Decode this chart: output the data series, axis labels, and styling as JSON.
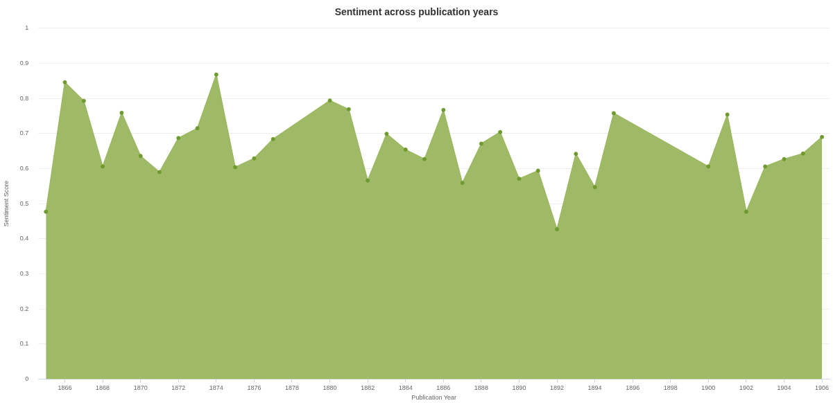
{
  "chart_data": {
    "type": "area",
    "title": "Sentiment across publication years",
    "xlabel": "Publication Year",
    "ylabel": "Sentiment Score",
    "x": [
      1865,
      1866,
      1867,
      1868,
      1869,
      1870,
      1871,
      1872,
      1873,
      1874,
      1875,
      1876,
      1877,
      1880,
      1881,
      1882,
      1883,
      1884,
      1885,
      1886,
      1887,
      1888,
      1889,
      1890,
      1891,
      1892,
      1893,
      1894,
      1895,
      1900,
      1901,
      1902,
      1903,
      1904,
      1905,
      1906
    ],
    "series": [
      {
        "color": "#9bb861",
        "values": [
          0.477,
          0.846,
          0.793,
          0.606,
          0.759,
          0.636,
          0.59,
          0.687,
          0.715,
          0.868,
          0.604,
          0.629,
          0.684,
          0.794,
          0.769,
          0.566,
          0.699,
          0.654,
          0.627,
          0.767,
          0.559,
          0.671,
          0.704,
          0.571,
          0.594,
          0.427,
          0.642,
          0.547,
          0.758,
          0.606,
          0.754,
          0.477,
          0.606,
          0.627,
          0.643,
          0.69
        ]
      }
    ],
    "xlim": [
      1864.6,
      1906.4
    ],
    "xticks": [
      1866,
      1868,
      1870,
      1872,
      1874,
      1876,
      1878,
      1880,
      1882,
      1884,
      1886,
      1888,
      1890,
      1892,
      1894,
      1896,
      1898,
      1900,
      1902,
      1904,
      1906
    ],
    "ylim": [
      0,
      1
    ],
    "yticks": [
      0,
      0.1,
      0.2,
      0.3,
      0.4,
      0.5,
      0.6,
      0.7,
      0.8,
      0.9,
      1
    ],
    "grid": "y",
    "legend": false,
    "marker": "circle"
  }
}
